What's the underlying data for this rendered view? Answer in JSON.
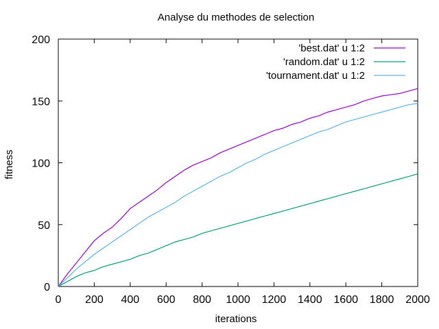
{
  "chart_data": {
    "type": "line",
    "title": "Analyse du methodes de selection",
    "xlabel": "iterations",
    "ylabel": "fitness",
    "xlim": [
      0,
      2000
    ],
    "ylim": [
      0,
      200
    ],
    "xticks": [
      0,
      200,
      400,
      600,
      800,
      1000,
      1200,
      1400,
      1600,
      1800,
      2000
    ],
    "yticks": [
      0,
      50,
      100,
      150,
      200
    ],
    "grid": false,
    "legend_position": "top-right",
    "series": [
      {
        "name": "'best.dat' u 1:2",
        "color": "#9400d3",
        "x": [
          0,
          50,
          100,
          150,
          200,
          250,
          300,
          350,
          400,
          450,
          500,
          550,
          600,
          650,
          700,
          750,
          800,
          850,
          900,
          950,
          1000,
          1050,
          1100,
          1150,
          1200,
          1250,
          1300,
          1350,
          1400,
          1450,
          1500,
          1550,
          1600,
          1650,
          1700,
          1750,
          1800,
          1850,
          1900,
          1950,
          2000
        ],
        "y": [
          0,
          10,
          19,
          28,
          37,
          43,
          48,
          55,
          63,
          68,
          73,
          78,
          84,
          89,
          94,
          98,
          101,
          104,
          108,
          111,
          114,
          117,
          120,
          123,
          126,
          128,
          131,
          133,
          136,
          138,
          141,
          143,
          145,
          147,
          150,
          152,
          154,
          155,
          156,
          158,
          160
        ]
      },
      {
        "name": "'random.dat' u 1:2",
        "color": "#009e73",
        "x": [
          0,
          50,
          100,
          150,
          200,
          250,
          300,
          350,
          400,
          450,
          500,
          550,
          600,
          650,
          700,
          750,
          800,
          850,
          900,
          950,
          1000,
          1050,
          1100,
          1150,
          1200,
          1250,
          1300,
          1350,
          1400,
          1450,
          1500,
          1550,
          1600,
          1650,
          1700,
          1750,
          1800,
          1850,
          1900,
          1950,
          2000
        ],
        "y": [
          0,
          4,
          8,
          11,
          13,
          16,
          18,
          20,
          22,
          25,
          27,
          30,
          33,
          36,
          38,
          40,
          43,
          45,
          47,
          49,
          51,
          53,
          55,
          57,
          59,
          61,
          63,
          65,
          67,
          69,
          71,
          73,
          75,
          77,
          79,
          81,
          83,
          85,
          87,
          89,
          91
        ]
      },
      {
        "name": "'tournament.dat' u 1:2",
        "color": "#56b4e9",
        "x": [
          0,
          50,
          100,
          150,
          200,
          250,
          300,
          350,
          400,
          450,
          500,
          550,
          600,
          650,
          700,
          750,
          800,
          850,
          900,
          950,
          1000,
          1050,
          1100,
          1150,
          1200,
          1250,
          1300,
          1350,
          1400,
          1450,
          1500,
          1550,
          1600,
          1650,
          1700,
          1750,
          1800,
          1850,
          1900,
          1950,
          2000
        ],
        "y": [
          0,
          7,
          14,
          20,
          26,
          31,
          36,
          41,
          46,
          51,
          56,
          60,
          64,
          68,
          73,
          77,
          81,
          85,
          89,
          92,
          96,
          100,
          103,
          107,
          110,
          113,
          116,
          119,
          122,
          125,
          127,
          130,
          133,
          135,
          137,
          139,
          141,
          143,
          145,
          147,
          148
        ]
      }
    ]
  }
}
